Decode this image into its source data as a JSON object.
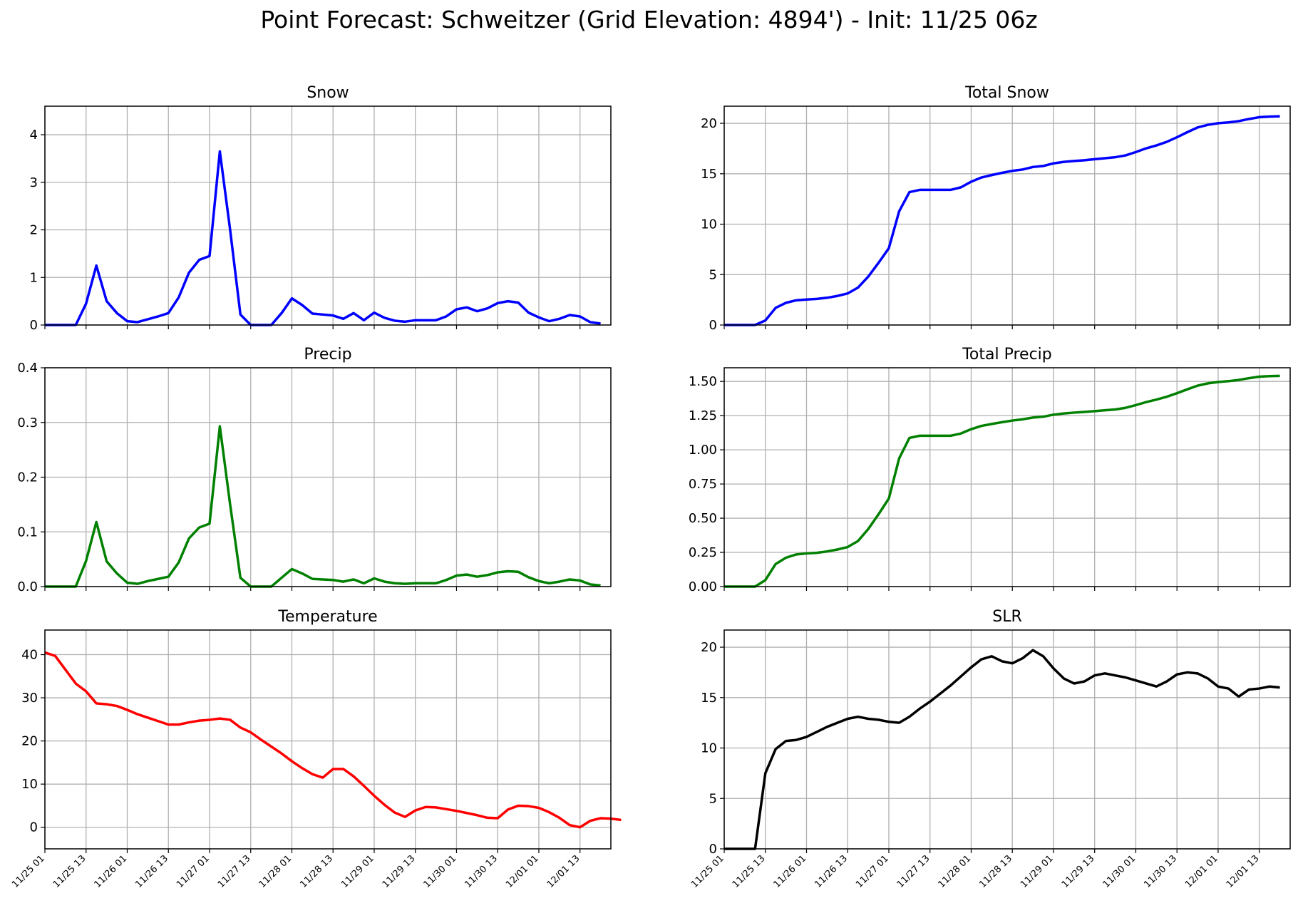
{
  "suptitle": "Point Forecast: Schweitzer (Grid Elevation: 4894') - Init: 11/25 06z",
  "x_tick_labels": [
    "11/25 01",
    "11/25 13",
    "11/26 01",
    "11/26 13",
    "11/27 01",
    "11/27 13",
    "11/28 01",
    "11/28 13",
    "11/29 01",
    "11/29 13",
    "11/30 01",
    "11/30 13",
    "12/01 01",
    "12/01 13"
  ],
  "chart_data": [
    {
      "type": "line",
      "title": "Snow",
      "color": "#0000ff",
      "ylim": [
        0,
        4.6
      ],
      "yticks": [
        0,
        1,
        2,
        3,
        4
      ],
      "y_tick_labels": [
        "0",
        "1",
        "2",
        "3",
        "4"
      ],
      "grid": true,
      "series": [
        {
          "values": [
            0,
            0,
            0,
            0,
            0.45,
            1.25,
            0.5,
            0.25,
            0.08,
            0.06,
            0.12,
            0.18,
            0.25,
            0.58,
            1.1,
            1.37,
            1.45,
            3.65,
            2.0,
            0.22,
            0,
            0,
            0,
            0.25,
            0.56,
            0.42,
            0.24,
            0.22,
            0.2,
            0.13,
            0.25,
            0.1,
            0.26,
            0.15,
            0.09,
            0.07,
            0.1,
            0.1,
            0.1,
            0.18,
            0.33,
            0.37,
            0.29,
            0.35,
            0.46,
            0.5,
            0.47,
            0.26,
            0.16,
            0.08,
            0.13,
            0.21,
            0.18,
            0.06,
            0.03
          ]
        }
      ]
    },
    {
      "type": "line",
      "title": "Total Snow",
      "color": "#0000ff",
      "ylim": [
        0,
        21.7
      ],
      "yticks": [
        0,
        5,
        10,
        15,
        20
      ],
      "y_tick_labels": [
        "0",
        "5",
        "10",
        "15",
        "20"
      ],
      "grid": true,
      "series": [
        {
          "values": [
            0,
            0,
            0,
            0,
            0.45,
            1.7,
            2.2,
            2.45,
            2.53,
            2.59,
            2.7,
            2.88,
            3.13,
            3.71,
            4.8,
            6.17,
            7.62,
            11.27,
            13.18,
            13.4,
            13.4,
            13.4,
            13.4,
            13.65,
            14.21,
            14.63,
            14.87,
            15.09,
            15.29,
            15.42,
            15.67,
            15.77,
            16.03,
            16.18,
            16.27,
            16.34,
            16.44,
            16.54,
            16.64,
            16.82,
            17.15,
            17.52,
            17.81,
            18.16,
            18.62,
            19.12,
            19.59,
            19.85,
            20.01,
            20.09,
            20.22,
            20.43,
            20.61,
            20.67,
            20.7
          ]
        }
      ]
    },
    {
      "type": "line",
      "title": "Precip",
      "color": "#008000",
      "ylim": [
        0,
        0.4
      ],
      "yticks": [
        0,
        0.1,
        0.2,
        0.3,
        0.4
      ],
      "y_tick_labels": [
        "0.0",
        "0.1",
        "0.2",
        "0.3",
        "0.4"
      ],
      "grid": true,
      "series": [
        {
          "values": [
            0,
            0,
            0,
            0,
            0.047,
            0.118,
            0.046,
            0.024,
            0.007,
            0.005,
            0.01,
            0.014,
            0.018,
            0.044,
            0.088,
            0.108,
            0.115,
            0.293,
            0.15,
            0.016,
            0,
            0,
            0,
            0.016,
            0.032,
            0.024,
            0.014,
            0.013,
            0.012,
            0.009,
            0.013,
            0.006,
            0.015,
            0.009,
            0.006,
            0.005,
            0.006,
            0.006,
            0.006,
            0.012,
            0.02,
            0.022,
            0.018,
            0.021,
            0.026,
            0.028,
            0.027,
            0.017,
            0.01,
            0.006,
            0.009,
            0.013,
            0.011,
            0.004,
            0.002
          ]
        }
      ]
    },
    {
      "type": "line",
      "title": "Total Precip",
      "color": "#008000",
      "ylim": [
        0,
        1.6
      ],
      "yticks": [
        0,
        0.25,
        0.5,
        0.75,
        1.0,
        1.25,
        1.5
      ],
      "y_tick_labels": [
        "0.00",
        "0.25",
        "0.50",
        "0.75",
        "1.00",
        "1.25",
        "1.50"
      ],
      "grid": true,
      "series": [
        {
          "values": [
            0,
            0,
            0,
            0,
            0.047,
            0.165,
            0.211,
            0.235,
            0.242,
            0.247,
            0.257,
            0.271,
            0.289,
            0.333,
            0.421,
            0.529,
            0.644,
            0.937,
            1.087,
            1.103,
            1.103,
            1.103,
            1.103,
            1.119,
            1.151,
            1.175,
            1.189,
            1.202,
            1.214,
            1.223,
            1.236,
            1.242,
            1.257,
            1.266,
            1.272,
            1.277,
            1.283,
            1.289,
            1.295,
            1.307,
            1.327,
            1.349,
            1.367,
            1.388,
            1.414,
            1.442,
            1.469,
            1.486,
            1.496,
            1.502,
            1.511,
            1.524,
            1.535,
            1.539,
            1.541
          ]
        }
      ]
    },
    {
      "type": "line",
      "title": "Temperature",
      "color": "#ff0000",
      "ylim": [
        -5,
        45.7
      ],
      "yticks": [
        0,
        10,
        20,
        30,
        40
      ],
      "y_tick_labels": [
        "0",
        "10",
        "20",
        "30",
        "40"
      ],
      "grid": true,
      "series": [
        {
          "values": [
            40.5,
            39.7,
            36.5,
            33.3,
            31.5,
            28.7,
            28.5,
            28.1,
            27.2,
            26.2,
            25.4,
            24.6,
            23.8,
            23.8,
            24.3,
            24.7,
            24.9,
            25.2,
            24.9,
            23.1,
            22,
            20.3,
            18.7,
            17.1,
            15.3,
            13.7,
            12.3,
            11.5,
            13.5,
            13.5,
            11.8,
            9.6,
            7.3,
            5.2,
            3.4,
            2.4,
            3.9,
            4.7,
            4.6,
            4.2,
            3.8,
            3.3,
            2.8,
            2.2,
            2.1,
            4.1,
            5,
            4.9,
            4.5,
            3.5,
            2.2,
            0.5,
            0,
            1.5,
            2.1,
            2,
            1.7
          ]
        }
      ]
    },
    {
      "type": "line",
      "title": "SLR",
      "color": "#000000",
      "ylim": [
        0,
        21.7
      ],
      "yticks": [
        0,
        5,
        10,
        15,
        20
      ],
      "y_tick_labels": [
        "0",
        "5",
        "10",
        "15",
        "20"
      ],
      "grid": true,
      "series": [
        {
          "values": [
            0,
            0,
            0,
            0,
            7.5,
            9.9,
            10.7,
            10.8,
            11.1,
            11.6,
            12.1,
            12.5,
            12.9,
            13.1,
            12.9,
            12.8,
            12.6,
            12.5,
            13.1,
            13.9,
            14.6,
            15.4,
            16.2,
            17.1,
            18,
            18.8,
            19.1,
            18.6,
            18.4,
            18.9,
            19.7,
            19.1,
            17.9,
            16.9,
            16.4,
            16.6,
            17.2,
            17.4,
            17.2,
            17,
            16.7,
            16.4,
            16.1,
            16.6,
            17.3,
            17.5,
            17.4,
            16.9,
            16.1,
            15.9,
            15.1,
            15.8,
            15.9,
            16.1,
            16
          ]
        }
      ]
    }
  ]
}
